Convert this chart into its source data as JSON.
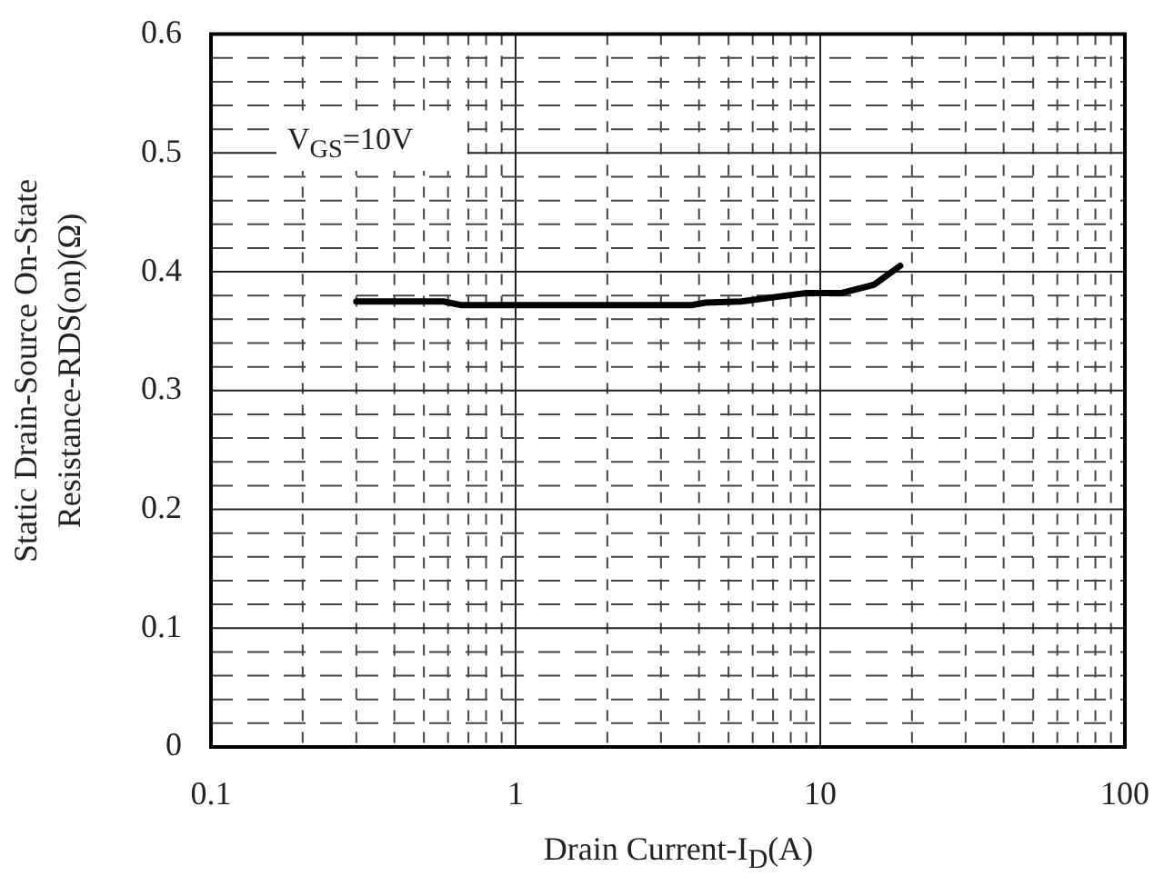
{
  "chart_data": {
    "type": "line",
    "xlabel": "Drain Current-I$_{D}$(A)",
    "ylabel": "Static Drain-Source On-State\nResistance-RDS(on)(Ω)",
    "annotations": [
      "V$_{GS}$=10V"
    ],
    "log": "x",
    "grid": true,
    "marker": "none",
    "line_style": "solid",
    "xlim": [
      0.1,
      100
    ],
    "ylim": [
      0,
      0.6
    ],
    "xticks": [
      0.1,
      {
        "value": 0.2,
        "label": null
      },
      {
        "value": 0.3,
        "label": null
      },
      {
        "value": 0.4,
        "label": null
      },
      {
        "value": 0.5,
        "label": null
      },
      {
        "value": 0.6,
        "label": null
      },
      {
        "value": 0.7,
        "label": null
      },
      {
        "value": 0.8,
        "label": null
      },
      {
        "value": 0.9,
        "label": null
      },
      1,
      {
        "value": 2,
        "label": null
      },
      {
        "value": 3,
        "label": null
      },
      {
        "value": 4,
        "label": null
      },
      {
        "value": 5,
        "label": null
      },
      {
        "value": 6,
        "label": null
      },
      {
        "value": 7,
        "label": null
      },
      {
        "value": 8,
        "label": null
      },
      {
        "value": 9,
        "label": null
      },
      10,
      {
        "value": 20,
        "label": null
      },
      {
        "value": 30,
        "label": null
      },
      {
        "value": 40,
        "label": null
      },
      {
        "value": 50,
        "label": null
      },
      {
        "value": 60,
        "label": null
      },
      {
        "value": 70,
        "label": null
      },
      {
        "value": 80,
        "label": null
      },
      {
        "value": 90,
        "label": null
      },
      100
    ],
    "yticks": [
      0,
      {
        "value": 0.02,
        "label": null
      },
      {
        "value": 0.04,
        "label": null
      },
      {
        "value": 0.06,
        "label": null
      },
      {
        "value": 0.08,
        "label": null
      },
      0.1,
      {
        "value": 0.12,
        "label": null
      },
      {
        "value": 0.14,
        "label": null
      },
      {
        "value": 0.16,
        "label": null
      },
      {
        "value": 0.18,
        "label": null
      },
      0.2,
      {
        "value": 0.22,
        "label": null
      },
      {
        "value": 0.24,
        "label": null
      },
      {
        "value": 0.26,
        "label": null
      },
      {
        "value": 0.28,
        "label": null
      },
      0.3,
      {
        "value": 0.32,
        "label": null
      },
      {
        "value": 0.34,
        "label": null
      },
      {
        "value": 0.36,
        "label": null
      },
      {
        "value": 0.38,
        "label": null
      },
      0.4,
      {
        "value": 0.42,
        "label": null
      },
      {
        "value": 0.44,
        "label": null
      },
      {
        "value": 0.46,
        "label": null
      },
      {
        "value": 0.48,
        "label": null
      },
      0.5,
      {
        "value": 0.52,
        "label": null
      },
      {
        "value": 0.54,
        "label": null
      },
      {
        "value": 0.56,
        "label": null
      },
      {
        "value": 0.58,
        "label": null
      },
      0.6
    ],
    "series": [
      {
        "color": "#000000",
        "x": [
          0.3,
          0.58,
          0.66,
          3.8,
          4.2,
          5.5,
          8.9,
          11.7,
          15,
          18.3
        ],
        "values": [
          0.375,
          0.375,
          0.372,
          0.372,
          0.374,
          0.375,
          0.382,
          0.382,
          0.389,
          0.405
        ]
      }
    ]
  }
}
